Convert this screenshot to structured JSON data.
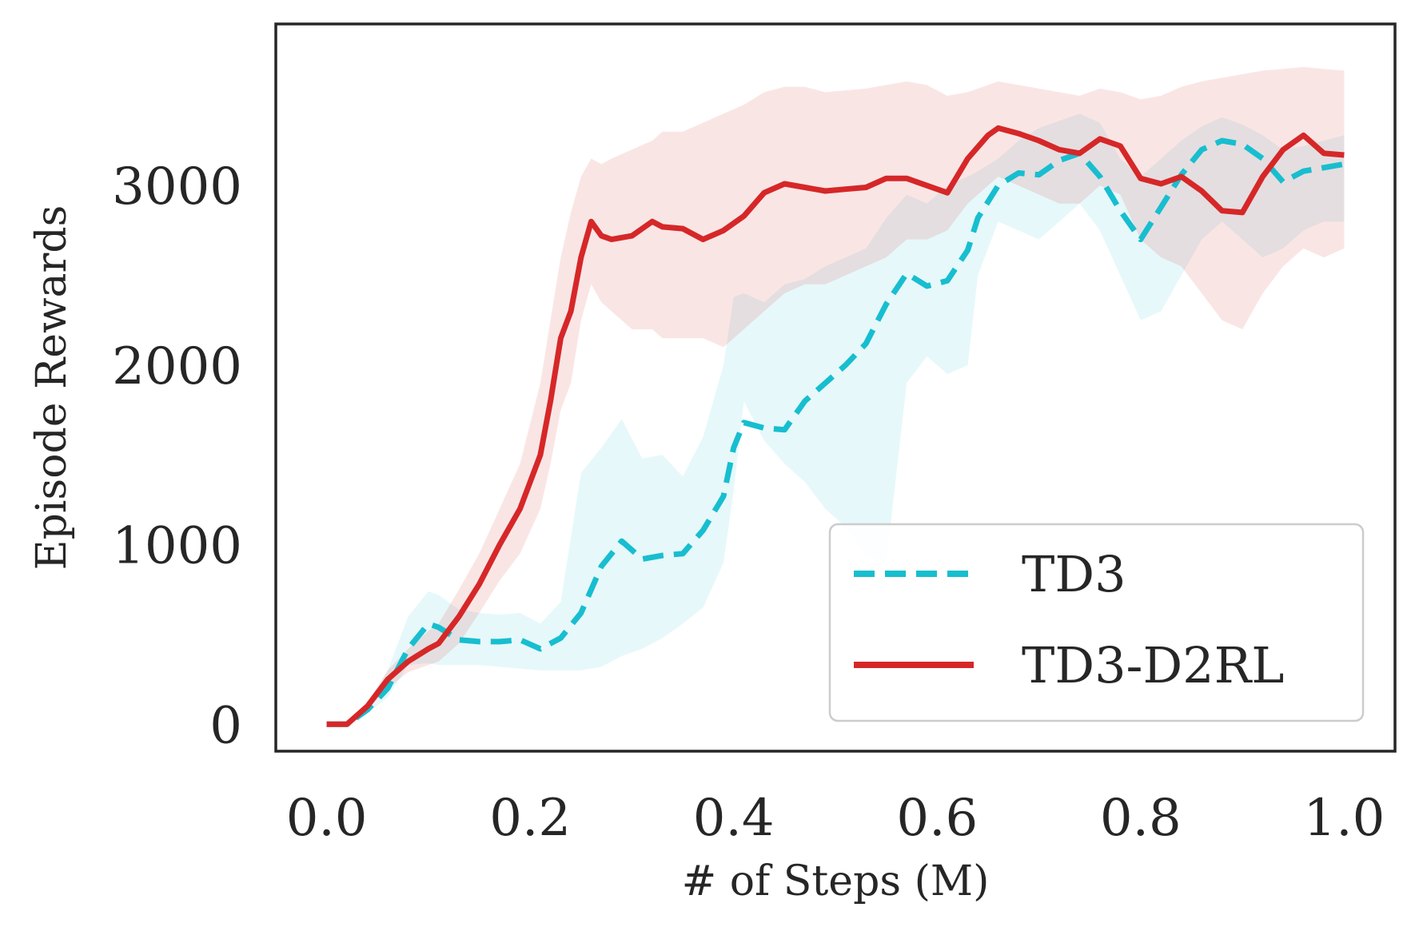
{
  "chart_data": {
    "type": "line",
    "title": "",
    "xlabel": "# of Steps (M)",
    "ylabel": "Episode Rewards",
    "xlim": [
      -0.05,
      1.05
    ],
    "ylim": [
      -150,
      3900
    ],
    "xticks": [
      0.0,
      0.2,
      0.4,
      0.6,
      0.8,
      1.0
    ],
    "xtick_labels": [
      "0.0",
      "0.2",
      "0.4",
      "0.6",
      "0.8",
      "1.0"
    ],
    "yticks": [
      0,
      1000,
      2000,
      3000
    ],
    "ytick_labels": [
      "0",
      "1000",
      "2000",
      "3000"
    ],
    "grid": false,
    "legend_position": "bottom-right",
    "series": [
      {
        "name": "TD3",
        "color": "#17becf",
        "dash": "dashed",
        "x": [
          0.0,
          0.02,
          0.04,
          0.06,
          0.08,
          0.1,
          0.11,
          0.13,
          0.15,
          0.17,
          0.19,
          0.21,
          0.23,
          0.25,
          0.27,
          0.29,
          0.31,
          0.33,
          0.35,
          0.37,
          0.39,
          0.4,
          0.41,
          0.43,
          0.45,
          0.47,
          0.49,
          0.51,
          0.53,
          0.55,
          0.57,
          0.59,
          0.61,
          0.63,
          0.64,
          0.66,
          0.68,
          0.7,
          0.72,
          0.74,
          0.76,
          0.78,
          0.8,
          0.82,
          0.84,
          0.86,
          0.88,
          0.9,
          0.92,
          0.94,
          0.96,
          0.98,
          1.0
        ],
        "values": [
          0,
          0,
          80,
          200,
          420,
          560,
          540,
          470,
          460,
          460,
          470,
          420,
          480,
          620,
          880,
          1020,
          920,
          940,
          950,
          1080,
          1270,
          1540,
          1680,
          1650,
          1640,
          1800,
          1900,
          2000,
          2120,
          2340,
          2510,
          2440,
          2470,
          2640,
          2820,
          3000,
          3070,
          3060,
          3140,
          3180,
          3050,
          2860,
          2700,
          2880,
          3060,
          3200,
          3250,
          3230,
          3150,
          3020,
          3080,
          3100,
          3120
        ],
        "band_low": [
          0,
          0,
          60,
          150,
          330,
          340,
          330,
          330,
          330,
          320,
          310,
          300,
          300,
          300,
          320,
          380,
          420,
          480,
          560,
          650,
          900,
          1300,
          1800,
          1580,
          1450,
          1350,
          1200,
          1100,
          950,
          900,
          1900,
          2050,
          1950,
          2000,
          2500,
          2800,
          2750,
          2700,
          2800,
          2900,
          2750,
          2500,
          2250,
          2300,
          2500,
          2700,
          2800,
          2700,
          2600,
          2650,
          2750,
          2800,
          2800
        ],
        "band_high": [
          0,
          0,
          100,
          300,
          600,
          740,
          720,
          640,
          620,
          610,
          620,
          560,
          680,
          1400,
          1540,
          1700,
          1480,
          1500,
          1380,
          1600,
          2000,
          2380,
          2400,
          2350,
          2450,
          2480,
          2550,
          2600,
          2650,
          2820,
          2950,
          2900,
          3000,
          3050,
          3080,
          3150,
          3250,
          3320,
          3360,
          3400,
          3350,
          3150,
          3050,
          3150,
          3250,
          3330,
          3380,
          3340,
          3280,
          3200,
          3220,
          3250,
          3280
        ]
      },
      {
        "name": "TD3-D2RL",
        "color": "#d62728",
        "dash": "solid",
        "x": [
          0.0,
          0.02,
          0.04,
          0.06,
          0.08,
          0.1,
          0.11,
          0.13,
          0.15,
          0.17,
          0.19,
          0.21,
          0.22,
          0.23,
          0.24,
          0.25,
          0.26,
          0.27,
          0.28,
          0.3,
          0.32,
          0.33,
          0.35,
          0.37,
          0.39,
          0.41,
          0.43,
          0.45,
          0.47,
          0.49,
          0.51,
          0.53,
          0.55,
          0.57,
          0.59,
          0.61,
          0.63,
          0.65,
          0.66,
          0.68,
          0.7,
          0.72,
          0.74,
          0.76,
          0.78,
          0.8,
          0.82,
          0.84,
          0.86,
          0.88,
          0.9,
          0.92,
          0.94,
          0.96,
          0.98,
          1.0
        ],
        "values": [
          0,
          0,
          100,
          250,
          350,
          420,
          450,
          600,
          780,
          1000,
          1200,
          1500,
          1800,
          2150,
          2300,
          2600,
          2800,
          2720,
          2700,
          2720,
          2800,
          2770,
          2760,
          2700,
          2750,
          2830,
          2960,
          3010,
          2990,
          2970,
          2980,
          2990,
          3040,
          3040,
          3000,
          2960,
          3150,
          3280,
          3320,
          3290,
          3250,
          3200,
          3180,
          3260,
          3220,
          3040,
          3010,
          3050,
          2970,
          2860,
          2850,
          3050,
          3200,
          3280,
          3180,
          3170
        ],
        "band_low": [
          0,
          0,
          80,
          200,
          290,
          330,
          350,
          450,
          620,
          800,
          950,
          1200,
          1450,
          1750,
          1900,
          2250,
          2450,
          2350,
          2300,
          2200,
          2200,
          2150,
          2150,
          2150,
          2100,
          2200,
          2300,
          2400,
          2450,
          2450,
          2500,
          2550,
          2600,
          2700,
          2700,
          2750,
          2900,
          3000,
          3050,
          3000,
          2950,
          2900,
          2900,
          3000,
          2950,
          2700,
          2600,
          2550,
          2400,
          2250,
          2200,
          2400,
          2550,
          2650,
          2600,
          2650
        ],
        "band_high": [
          0,
          0,
          120,
          300,
          420,
          520,
          560,
          750,
          950,
          1200,
          1450,
          1900,
          2250,
          2600,
          2850,
          3050,
          3150,
          3120,
          3150,
          3200,
          3250,
          3300,
          3300,
          3350,
          3400,
          3450,
          3520,
          3550,
          3550,
          3520,
          3530,
          3540,
          3560,
          3580,
          3560,
          3500,
          3520,
          3560,
          3580,
          3560,
          3540,
          3520,
          3500,
          3540,
          3520,
          3480,
          3500,
          3550,
          3580,
          3600,
          3620,
          3640,
          3650,
          3660,
          3650,
          3640
        ]
      }
    ]
  }
}
